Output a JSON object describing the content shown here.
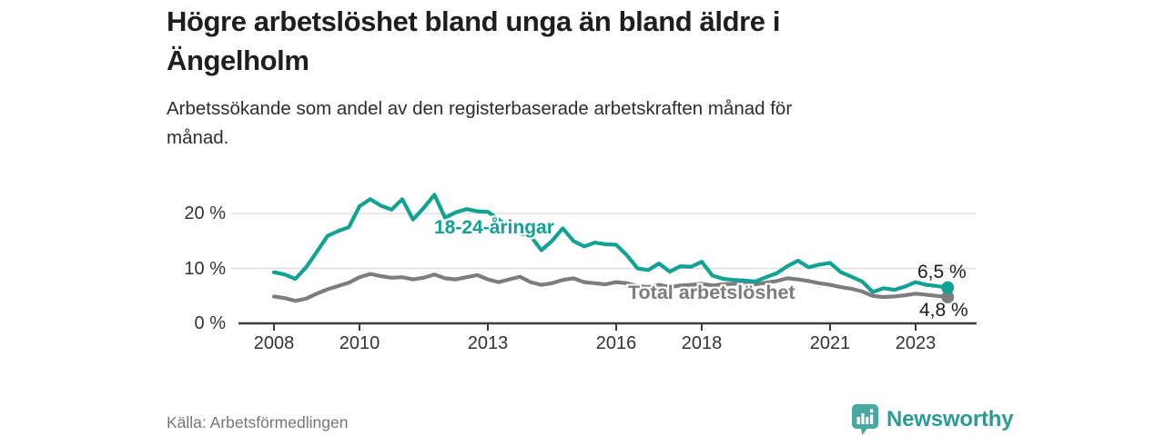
{
  "header": {
    "title_lines": [
      "Högre arbetslöshet bland unga än bland äldre i",
      "Ängelholm"
    ],
    "subtitle_lines": [
      "Arbetssökande som andel av den registerbaserade arbetskraften månad för",
      "månad."
    ]
  },
  "footer": {
    "source": "Källa: Arbetsförmedlingen",
    "brand": "Newsworthy"
  },
  "colors": {
    "young_line": "#12a294",
    "total_line": "#7d7d80",
    "gridline": "#dadada",
    "axis": "#3d3d3d",
    "logo_fill": "#49a8a1",
    "wordmark": "#2d9b94"
  },
  "chart_data": {
    "type": "line",
    "title": "Högre arbetslöshet bland unga än bland äldre i Ängelholm",
    "subtitle": "Arbetssökande som andel av den registerbaserade arbetskraften månad för månad.",
    "unit": "%",
    "x_start": 2008,
    "x_step_years": 0.25,
    "ylim": [
      0,
      25
    ],
    "grid": "horizontal",
    "x_ticks": [
      2008,
      2010,
      2013,
      2016,
      2018,
      2021,
      2023
    ],
    "y_ticks": [
      {
        "v": 0,
        "label": "0 %"
      },
      {
        "v": 10,
        "label": "10 %"
      },
      {
        "v": 20,
        "label": "20 %"
      }
    ],
    "y_gridlines": [
      10,
      20
    ],
    "series": [
      {
        "name": "18-24-åringar",
        "label": "18-24-åringar",
        "color": "#12a294",
        "end_label": "6,5 %",
        "end_value": 6.5,
        "values": [
          9.3,
          8.9,
          8.1,
          10.2,
          13.0,
          15.9,
          16.8,
          17.5,
          21.3,
          22.6,
          21.4,
          20.7,
          22.6,
          18.9,
          21.0,
          23.4,
          19.2,
          20.2,
          20.8,
          20.4,
          20.3,
          18.9,
          17.4,
          16.4,
          15.9,
          13.3,
          15.0,
          17.3,
          15.0,
          14.0,
          14.7,
          14.4,
          14.3,
          12.4,
          10.0,
          9.7,
          10.9,
          9.4,
          10.4,
          10.3,
          11.2,
          8.7,
          8.1,
          7.9,
          7.8,
          7.6,
          8.4,
          9.1,
          10.4,
          11.4,
          10.2,
          10.7,
          11.0,
          9.3,
          8.5,
          7.6,
          5.7,
          6.4,
          6.1,
          6.7,
          7.5,
          7.0,
          6.8,
          6.5
        ]
      },
      {
        "name": "Total arbetslöshet",
        "label": "Total arbetslöshet",
        "color": "#7d7d80",
        "end_label": "4,8 %",
        "end_value": 4.8,
        "values": [
          4.9,
          4.6,
          4.1,
          4.5,
          5.4,
          6.2,
          6.8,
          7.4,
          8.4,
          9.0,
          8.6,
          8.3,
          8.4,
          8.0,
          8.3,
          8.9,
          8.2,
          8.0,
          8.4,
          8.8,
          8.0,
          7.5,
          8.0,
          8.5,
          7.5,
          7.0,
          7.3,
          7.9,
          8.2,
          7.5,
          7.3,
          7.1,
          7.5,
          7.3,
          6.8,
          6.6,
          7.0,
          6.6,
          6.9,
          7.0,
          7.2,
          6.9,
          7.1,
          7.2,
          7.3,
          7.1,
          7.4,
          7.7,
          8.2,
          8.0,
          7.7,
          7.3,
          7.0,
          6.6,
          6.3,
          5.8,
          5.0,
          4.8,
          4.9,
          5.1,
          5.4,
          5.2,
          5.0,
          4.8
        ]
      }
    ]
  }
}
